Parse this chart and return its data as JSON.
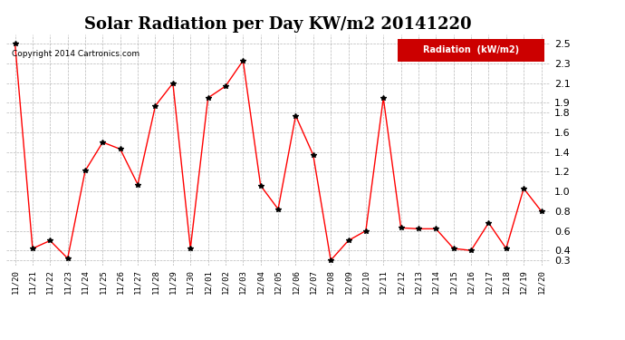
{
  "title": "Solar Radiation per Day KW/m2 20141220",
  "legend_label": "Radiation  (kW/m2)",
  "copyright_text": "Copyright 2014 Cartronics.com",
  "x_labels": [
    "11/20",
    "11/21",
    "11/22",
    "11/23",
    "11/24",
    "11/25",
    "11/26",
    "11/27",
    "11/28",
    "11/29",
    "11/30",
    "12/01",
    "12/02",
    "12/03",
    "12/04",
    "12/05",
    "12/06",
    "12/07",
    "12/08",
    "12/09",
    "12/10",
    "12/11",
    "12/12",
    "12/13",
    "12/14",
    "12/15",
    "12/16",
    "12/17",
    "12/18",
    "12/19",
    "12/20"
  ],
  "values": [
    2.5,
    0.42,
    0.5,
    0.32,
    1.21,
    1.5,
    1.43,
    1.07,
    1.87,
    2.1,
    0.42,
    1.95,
    2.07,
    2.33,
    1.06,
    0.82,
    1.77,
    1.37,
    0.3,
    0.5,
    0.6,
    1.95,
    0.63,
    0.62,
    0.62,
    0.42,
    0.4,
    0.68,
    0.42,
    1.03,
    0.8
  ],
  "line_color": "#ff0000",
  "marker_color": "#000000",
  "bg_color": "#ffffff",
  "grid_color": "#999999",
  "ylim": [
    0.25,
    2.6
  ],
  "yticks": [
    0.3,
    0.4,
    0.6,
    0.8,
    1.0,
    1.2,
    1.4,
    1.6,
    1.8,
    1.9,
    2.1,
    2.3,
    2.5
  ],
  "title_fontsize": 13,
  "legend_bg": "#cc0000",
  "legend_text_color": "#ffffff"
}
